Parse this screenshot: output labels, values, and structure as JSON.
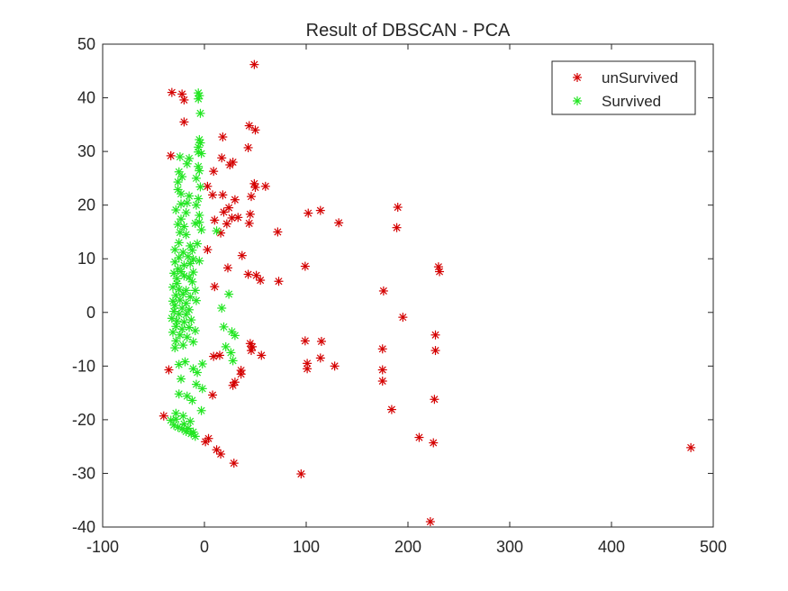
{
  "chart_data": {
    "type": "scatter",
    "title": "Result of DBSCAN - PCA",
    "xlabel": "",
    "ylabel": "",
    "xlim": [
      -100,
      500
    ],
    "ylim": [
      -40,
      50
    ],
    "xticks": [
      -100,
      0,
      100,
      200,
      300,
      400,
      500
    ],
    "yticks": [
      -40,
      -30,
      -20,
      -10,
      0,
      10,
      20,
      30,
      40,
      50
    ],
    "grid": false,
    "legend_position": "top-right",
    "series": [
      {
        "name": "unSurvived",
        "color": "#d40000",
        "marker": "asterisk",
        "points": [
          [
            49,
            46.2
          ],
          [
            -32,
            41
          ],
          [
            -22,
            40.7
          ],
          [
            -20,
            39.6
          ],
          [
            -20,
            35.5
          ],
          [
            44,
            34.8
          ],
          [
            50,
            34
          ],
          [
            43,
            30.7
          ],
          [
            -33,
            29.2
          ],
          [
            18,
            32.7
          ],
          [
            17,
            28.8
          ],
          [
            28,
            28
          ],
          [
            25,
            27.5
          ],
          [
            9,
            26.3
          ],
          [
            49,
            24
          ],
          [
            50,
            23.3
          ],
          [
            60,
            23.5
          ],
          [
            3,
            23.5
          ],
          [
            8,
            21.9
          ],
          [
            18,
            21.9
          ],
          [
            30,
            21
          ],
          [
            46,
            21.6
          ],
          [
            19,
            18.7
          ],
          [
            24,
            19.5
          ],
          [
            27,
            17.6
          ],
          [
            33,
            17.7
          ],
          [
            45,
            18.3
          ],
          [
            102,
            18.5
          ],
          [
            114,
            19
          ],
          [
            132,
            16.7
          ],
          [
            10,
            17.2
          ],
          [
            22,
            16.5
          ],
          [
            44,
            16.6
          ],
          [
            72,
            15
          ],
          [
            16,
            14.8
          ],
          [
            190,
            19.6
          ],
          [
            189,
            15.8
          ],
          [
            3,
            11.7
          ],
          [
            37,
            10.6
          ],
          [
            23,
            8.3
          ],
          [
            99,
            8.6
          ],
          [
            230,
            8.5
          ],
          [
            231,
            7.6
          ],
          [
            43,
            7.1
          ],
          [
            51,
            6.9
          ],
          [
            55,
            6
          ],
          [
            73,
            5.8
          ],
          [
            10,
            4.8
          ],
          [
            176,
            4
          ],
          [
            195,
            -0.9
          ],
          [
            227,
            -4.2
          ],
          [
            99,
            -5.3
          ],
          [
            115,
            -5.4
          ],
          [
            45,
            -5.8
          ],
          [
            47,
            -6.4
          ],
          [
            46,
            -7.1
          ],
          [
            175,
            -6.8
          ],
          [
            227,
            -7.1
          ],
          [
            56,
            -8
          ],
          [
            15,
            -8
          ],
          [
            9,
            -8.2
          ],
          [
            114,
            -8.5
          ],
          [
            101,
            -9.5
          ],
          [
            101,
            -10.5
          ],
          [
            128,
            -10
          ],
          [
            36,
            -10.8
          ],
          [
            36,
            -11.5
          ],
          [
            -35,
            -10.7
          ],
          [
            175,
            -10.7
          ],
          [
            175,
            -12.8
          ],
          [
            30,
            -13
          ],
          [
            28,
            -13.6
          ],
          [
            8,
            -15.4
          ],
          [
            226,
            -16.2
          ],
          [
            184,
            -18.1
          ],
          [
            -40,
            -19.3
          ],
          [
            211,
            -23.3
          ],
          [
            4,
            -23.5
          ],
          [
            1,
            -24.1
          ],
          [
            225,
            -24.3
          ],
          [
            12,
            -25.6
          ],
          [
            16,
            -26.4
          ],
          [
            29,
            -28.1
          ],
          [
            95,
            -30.1
          ],
          [
            222,
            -39
          ],
          [
            478,
            -25.2
          ]
        ]
      },
      {
        "name": "Survived",
        "color": "#22e622",
        "marker": "asterisk",
        "points": [
          [
            -6,
            40.9
          ],
          [
            -5,
            40.4
          ],
          [
            -6,
            39.8
          ],
          [
            -4,
            37.1
          ],
          [
            -5,
            32.2
          ],
          [
            -4,
            31.6
          ],
          [
            -6,
            30.8
          ],
          [
            -6,
            29.9
          ],
          [
            -3,
            29.6
          ],
          [
            -24,
            29
          ],
          [
            -15,
            28.7
          ],
          [
            -17,
            27.7
          ],
          [
            -6,
            27.2
          ],
          [
            -5,
            26.4
          ],
          [
            -25,
            26.2
          ],
          [
            -22,
            25.3
          ],
          [
            -8,
            25
          ],
          [
            -26,
            24.3
          ],
          [
            -4,
            23.4
          ],
          [
            -26,
            22.9
          ],
          [
            -23,
            22.1
          ],
          [
            -15,
            21.7
          ],
          [
            -6,
            21.2
          ],
          [
            -23,
            20.2
          ],
          [
            -17,
            20.4
          ],
          [
            -8,
            20
          ],
          [
            -28,
            19.1
          ],
          [
            -18,
            18.6
          ],
          [
            -5,
            18.1
          ],
          [
            -23,
            17.4
          ],
          [
            -26,
            16.4
          ],
          [
            -20,
            16
          ],
          [
            -9,
            16.6
          ],
          [
            -5,
            16.8
          ],
          [
            -3,
            15.4
          ],
          [
            -24,
            14.9
          ],
          [
            -18,
            14.5
          ],
          [
            12,
            15.2
          ],
          [
            -25,
            13
          ],
          [
            -14,
            12.4
          ],
          [
            -7,
            12.8
          ],
          [
            -29,
            11.7
          ],
          [
            -21,
            11.2
          ],
          [
            -12,
            11.6
          ],
          [
            -25,
            10.2
          ],
          [
            -16,
            10.4
          ],
          [
            -11,
            9.9
          ],
          [
            -5,
            9.6
          ],
          [
            -29,
            9.4
          ],
          [
            -20,
            8.8
          ],
          [
            -14,
            9.1
          ],
          [
            -26,
            8.1
          ],
          [
            -30,
            7.3
          ],
          [
            -23,
            7.6
          ],
          [
            -11,
            7.5
          ],
          [
            -27,
            6.3
          ],
          [
            -20,
            6.8
          ],
          [
            -15,
            6.5
          ],
          [
            -27,
            5.4
          ],
          [
            -12,
            5.7
          ],
          [
            -31,
            4.7
          ],
          [
            -25,
            4.3
          ],
          [
            -18,
            4.1
          ],
          [
            -9,
            4.1
          ],
          [
            -28,
            3.2
          ],
          [
            -21,
            3.4
          ],
          [
            -14,
            2.9
          ],
          [
            -31,
            2.1
          ],
          [
            -24,
            2.3
          ],
          [
            -18,
            1.7
          ],
          [
            -8,
            2.2
          ],
          [
            -29,
            1.3
          ],
          [
            -22,
            0.8
          ],
          [
            -15,
            0.5
          ],
          [
            -30,
            0.2
          ],
          [
            -25,
            -0.3
          ],
          [
            -18,
            -0.4
          ],
          [
            -32,
            -1.1
          ],
          [
            -27,
            -1.6
          ],
          [
            -20,
            -1.8
          ],
          [
            -13,
            -1.4
          ],
          [
            -28,
            -2.6
          ],
          [
            -22,
            -3.1
          ],
          [
            -15,
            -2.8
          ],
          [
            -9,
            -3.4
          ],
          [
            -31,
            -3.7
          ],
          [
            -24,
            -4.2
          ],
          [
            -17,
            -4.6
          ],
          [
            -28,
            -5.3
          ],
          [
            -11,
            -5.5
          ],
          [
            -21,
            -6.1
          ],
          [
            -29,
            -6.6
          ],
          [
            24,
            3.4
          ],
          [
            17,
            0.8
          ],
          [
            19,
            -2.7
          ],
          [
            27,
            -3.6
          ],
          [
            30,
            -4.3
          ],
          [
            21,
            -6.4
          ],
          [
            26,
            -7.5
          ],
          [
            28,
            -9
          ],
          [
            -2,
            -9.6
          ],
          [
            -25,
            -9.7
          ],
          [
            -19,
            -9.2
          ],
          [
            -11,
            -10.5
          ],
          [
            -7,
            -11.2
          ],
          [
            -23,
            -12.4
          ],
          [
            -8,
            -13.4
          ],
          [
            -2,
            -14.2
          ],
          [
            -25,
            -15.2
          ],
          [
            -17,
            -15.6
          ],
          [
            -12,
            -16.4
          ],
          [
            -3,
            -18.3
          ],
          [
            -28,
            -18.8
          ],
          [
            -21,
            -19.3
          ],
          [
            -14,
            -20.3
          ],
          [
            -33,
            -20.1
          ],
          [
            -30,
            -21
          ],
          [
            -26,
            -21.4
          ],
          [
            -22,
            -21.7
          ],
          [
            -18,
            -22.2
          ],
          [
            -13,
            -22.6
          ],
          [
            -9,
            -23.1
          ],
          [
            -28,
            -19.9
          ],
          [
            -20,
            -20.8
          ],
          [
            -16,
            -21.6
          ],
          [
            -11,
            -22.3
          ]
        ]
      }
    ]
  }
}
